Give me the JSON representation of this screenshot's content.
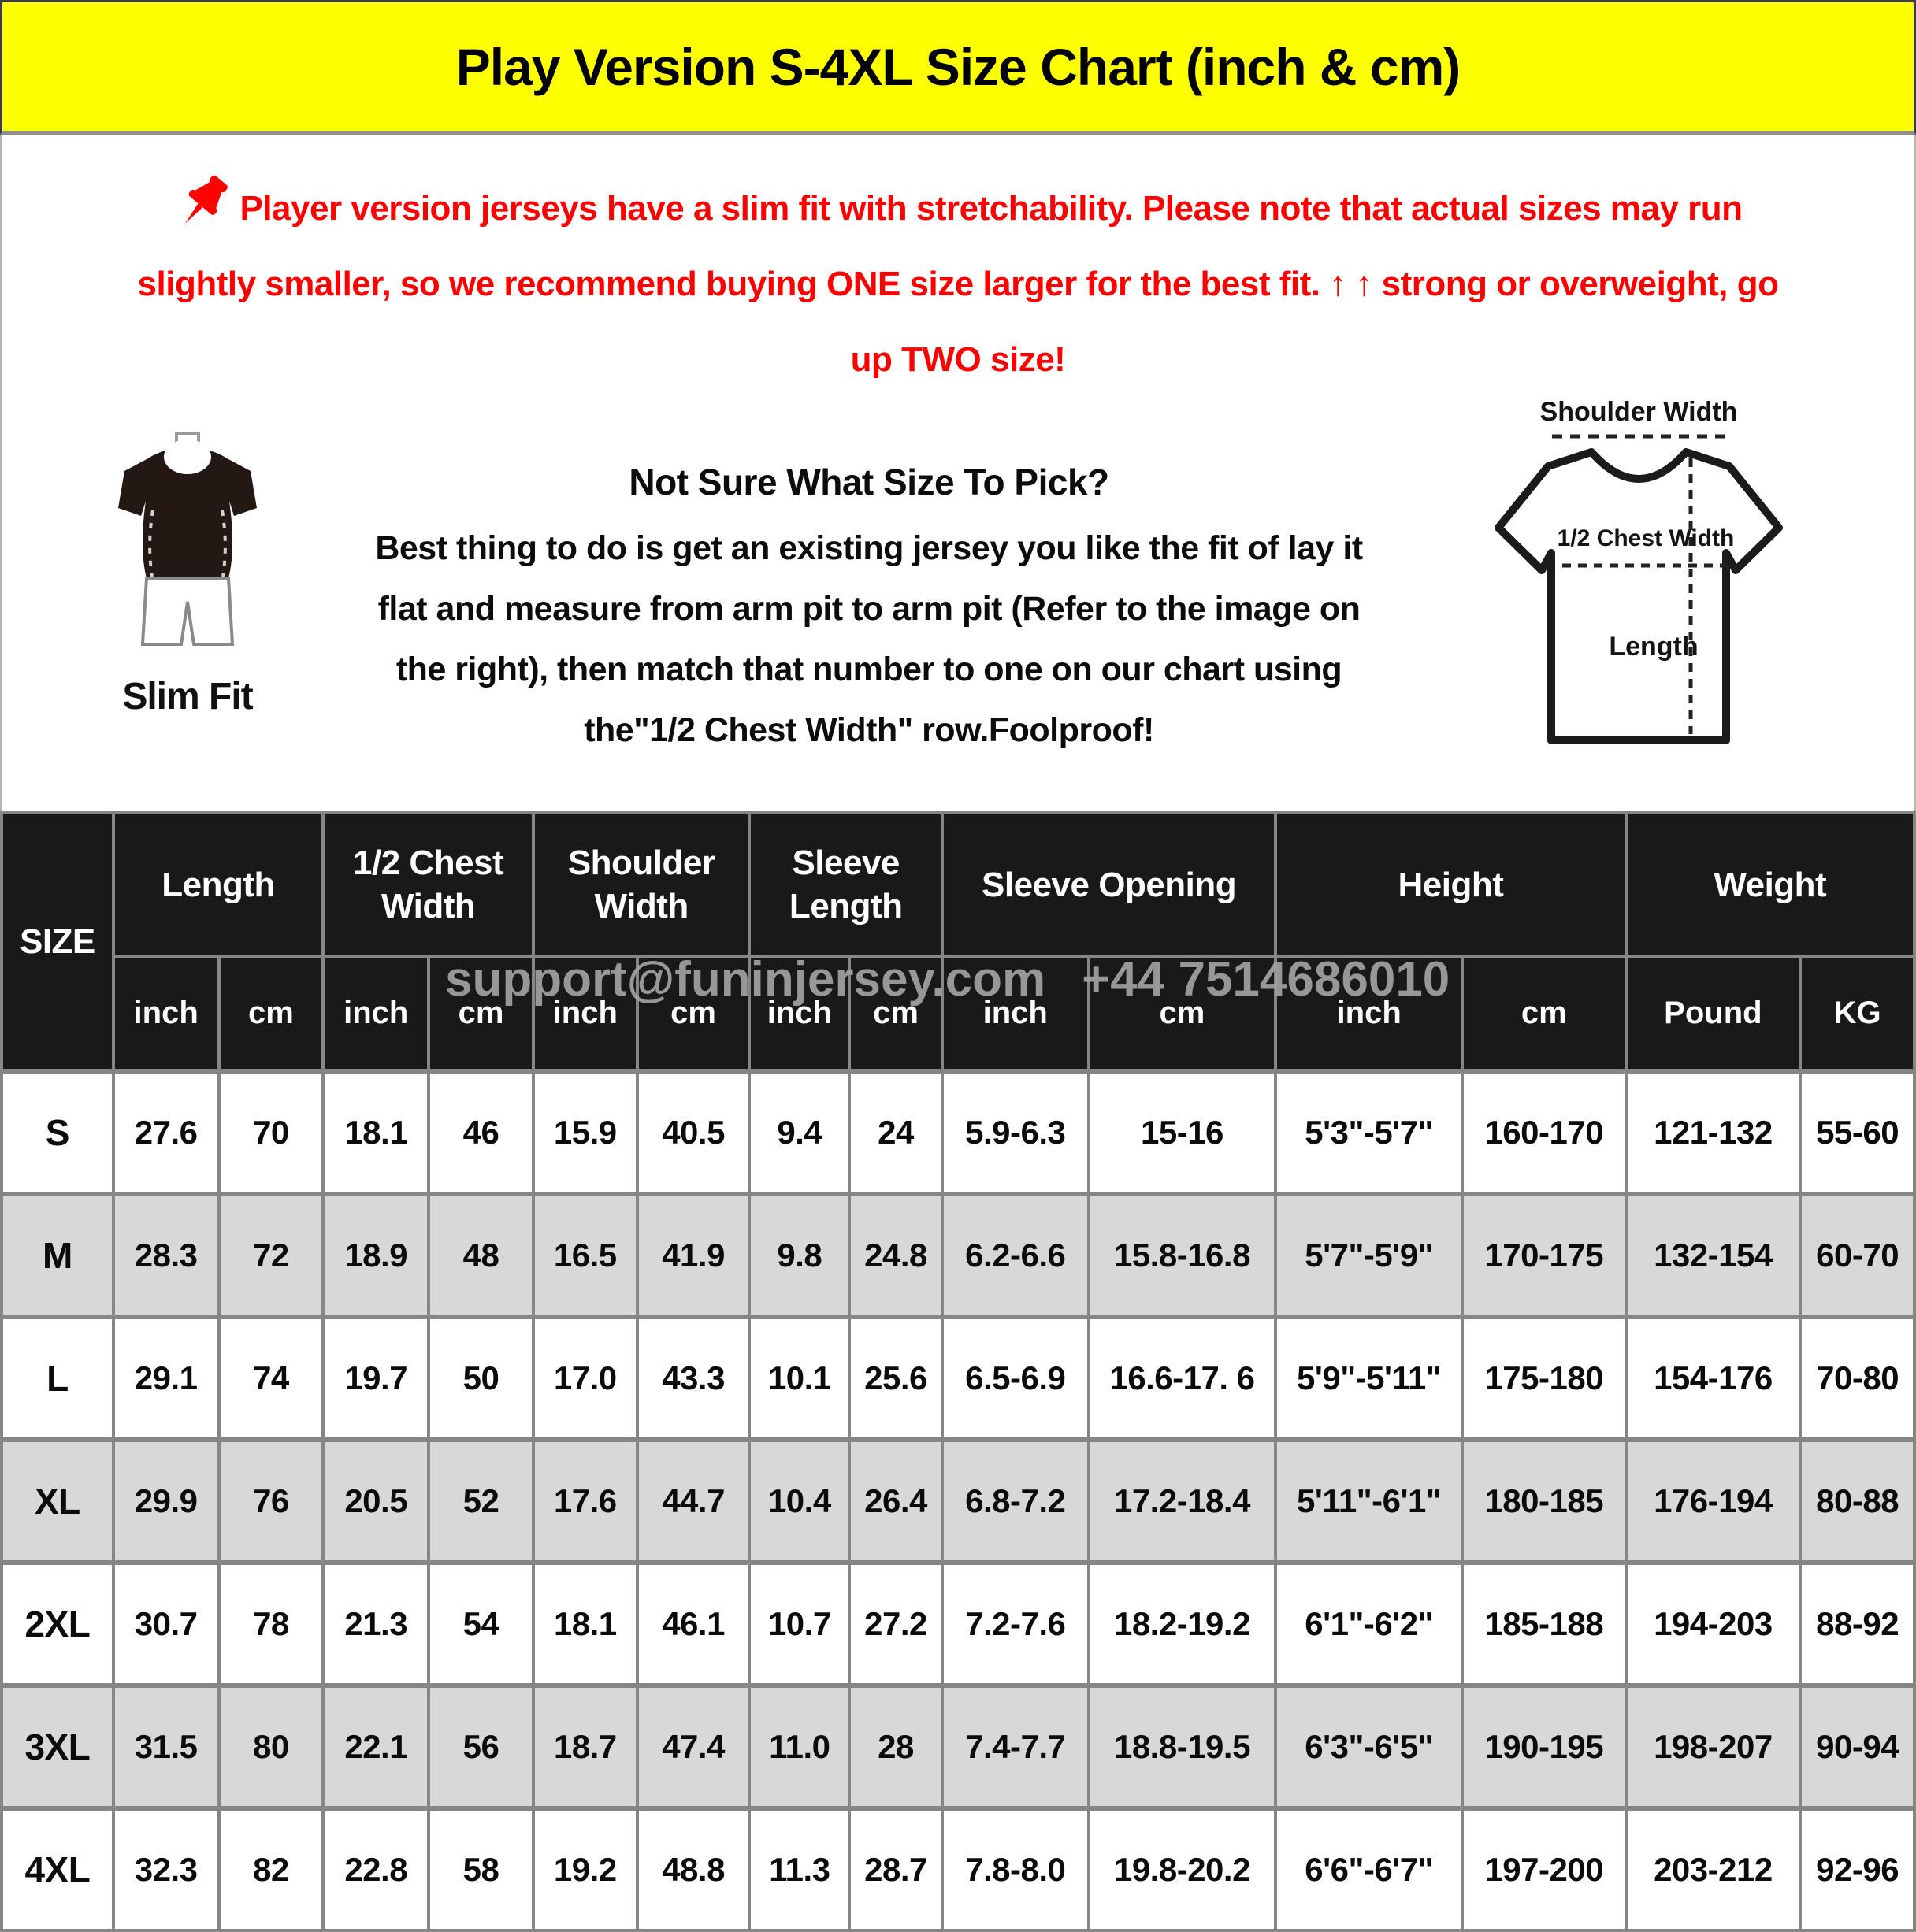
{
  "title": "Play Version S-4XL Size Chart (inch & cm)",
  "notice": {
    "lines": [
      "Player version jerseys have a slim fit with stretchability. Please note that actual sizes may run",
      "slightly smaller, so we recommend buying ONE size larger for the best fit. ↑ ↑ strong or overweight, go",
      "up TWO size!"
    ]
  },
  "fit": {
    "label": "Slim Fit"
  },
  "size_help": {
    "heading": "Not Sure What Size To Pick?",
    "lines": [
      "Best thing to do is get an existing jersey you like the fit of lay it",
      "flat and measure from arm pit to arm pit (Refer to the image on",
      "the right), then match that number to one on our chart using",
      "the\"1/2 Chest Width\" row.Foolproof!"
    ]
  },
  "diagram": {
    "shoulder_label": "Shoulder Width",
    "chest_label": "1/2 Chest Width",
    "length_label": "Length"
  },
  "watermark": {
    "email": "support@funinjersey.com",
    "phone": "+44 7514686010"
  },
  "table": {
    "size_header": "SIZE",
    "groups": [
      {
        "label": "Length",
        "units": [
          "inch",
          "cm"
        ]
      },
      {
        "label": "1/2 Chest Width",
        "units": [
          "inch",
          "cm"
        ]
      },
      {
        "label": "Shoulder Width",
        "units": [
          "inch",
          "cm"
        ]
      },
      {
        "label": "Sleeve Length",
        "units": [
          "inch",
          "cm"
        ]
      },
      {
        "label": "Sleeve Opening",
        "units": [
          "inch",
          "cm"
        ]
      },
      {
        "label": "Height",
        "units": [
          "inch",
          "cm"
        ]
      },
      {
        "label": "Weight",
        "units": [
          "Pound",
          "KG"
        ]
      }
    ],
    "rows": [
      {
        "size": "S",
        "values": [
          "27.6",
          "70",
          "18.1",
          "46",
          "15.9",
          "40.5",
          "9.4",
          "24",
          "5.9-6.3",
          "15-16",
          "5'3\"-5'7\"",
          "160-170",
          "121-132",
          "55-60"
        ]
      },
      {
        "size": "M",
        "values": [
          "28.3",
          "72",
          "18.9",
          "48",
          "16.5",
          "41.9",
          "9.8",
          "24.8",
          "6.2-6.6",
          "15.8-16.8",
          "5'7\"-5'9\"",
          "170-175",
          "132-154",
          "60-70"
        ]
      },
      {
        "size": "L",
        "values": [
          "29.1",
          "74",
          "19.7",
          "50",
          "17.0",
          "43.3",
          "10.1",
          "25.6",
          "6.5-6.9",
          "16.6-17. 6",
          "5'9\"-5'11\"",
          "175-180",
          "154-176",
          "70-80"
        ]
      },
      {
        "size": "XL",
        "values": [
          "29.9",
          "76",
          "20.5",
          "52",
          "17.6",
          "44.7",
          "10.4",
          "26.4",
          "6.8-7.2",
          "17.2-18.4",
          "5'11\"-6'1\"",
          "180-185",
          "176-194",
          "80-88"
        ]
      },
      {
        "size": "2XL",
        "values": [
          "30.7",
          "78",
          "21.3",
          "54",
          "18.1",
          "46.1",
          "10.7",
          "27.2",
          "7.2-7.6",
          "18.2-19.2",
          "6'1\"-6'2\"",
          "185-188",
          "194-203",
          "88-92"
        ]
      },
      {
        "size": "3XL",
        "values": [
          "31.5",
          "80",
          "22.1",
          "56",
          "18.7",
          "47.4",
          "11.0",
          "28",
          "7.4-7.7",
          "18.8-19.5",
          "6'3\"-6'5\"",
          "190-195",
          "198-207",
          "90-94"
        ]
      },
      {
        "size": "4XL",
        "values": [
          "32.3",
          "82",
          "22.8",
          "58",
          "19.2",
          "48.8",
          "11.3",
          "28.7",
          "7.8-8.0",
          "19.8-20.2",
          "6'6\"-6'7\"",
          "197-200",
          "203-212",
          "92-96"
        ]
      }
    ]
  }
}
